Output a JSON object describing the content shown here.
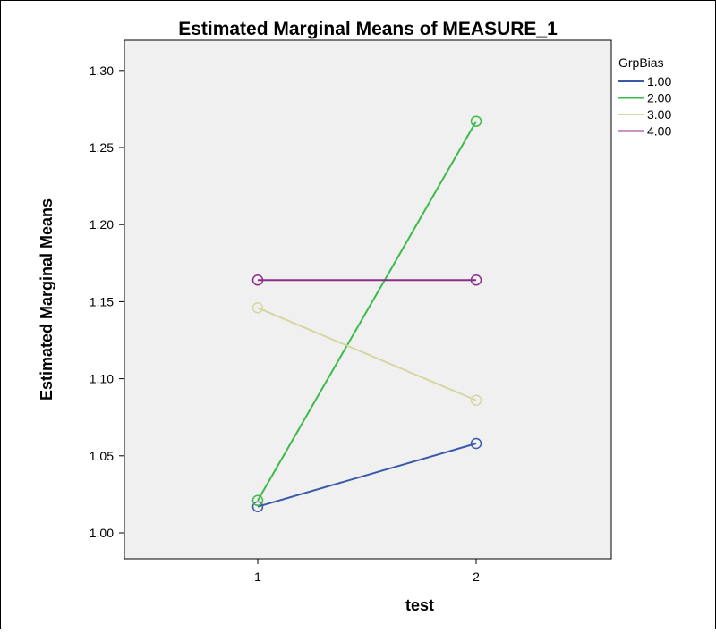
{
  "chart_data": {
    "type": "line",
    "title": "Estimated Marginal Means of MEASURE_1",
    "xlabel": "test",
    "ylabel": "Estimated Marginal Means",
    "categories": [
      "1",
      "2"
    ],
    "ylim": [
      0.975,
      1.325
    ],
    "yticks": [
      "1.00",
      "1.05",
      "1.10",
      "1.15",
      "1.20",
      "1.25",
      "1.30"
    ],
    "ytick_values": [
      1.0,
      1.05,
      1.1,
      1.15,
      1.2,
      1.25,
      1.3
    ],
    "legend_title": "GrpBias",
    "legend_position": "top-right, outside plot",
    "grid": false,
    "plot_background": "#f0f0f0",
    "series": [
      {
        "name": "1.00",
        "color": "#3b59a8",
        "values": [
          1.017,
          1.058
        ]
      },
      {
        "name": "2.00",
        "color": "#3cba4a",
        "values": [
          1.021,
          1.267
        ]
      },
      {
        "name": "3.00",
        "color": "#d6d6a3",
        "values": [
          1.146,
          1.086
        ]
      },
      {
        "name": "4.00",
        "color": "#8b2c8b",
        "values": [
          1.164,
          1.164
        ]
      }
    ]
  }
}
